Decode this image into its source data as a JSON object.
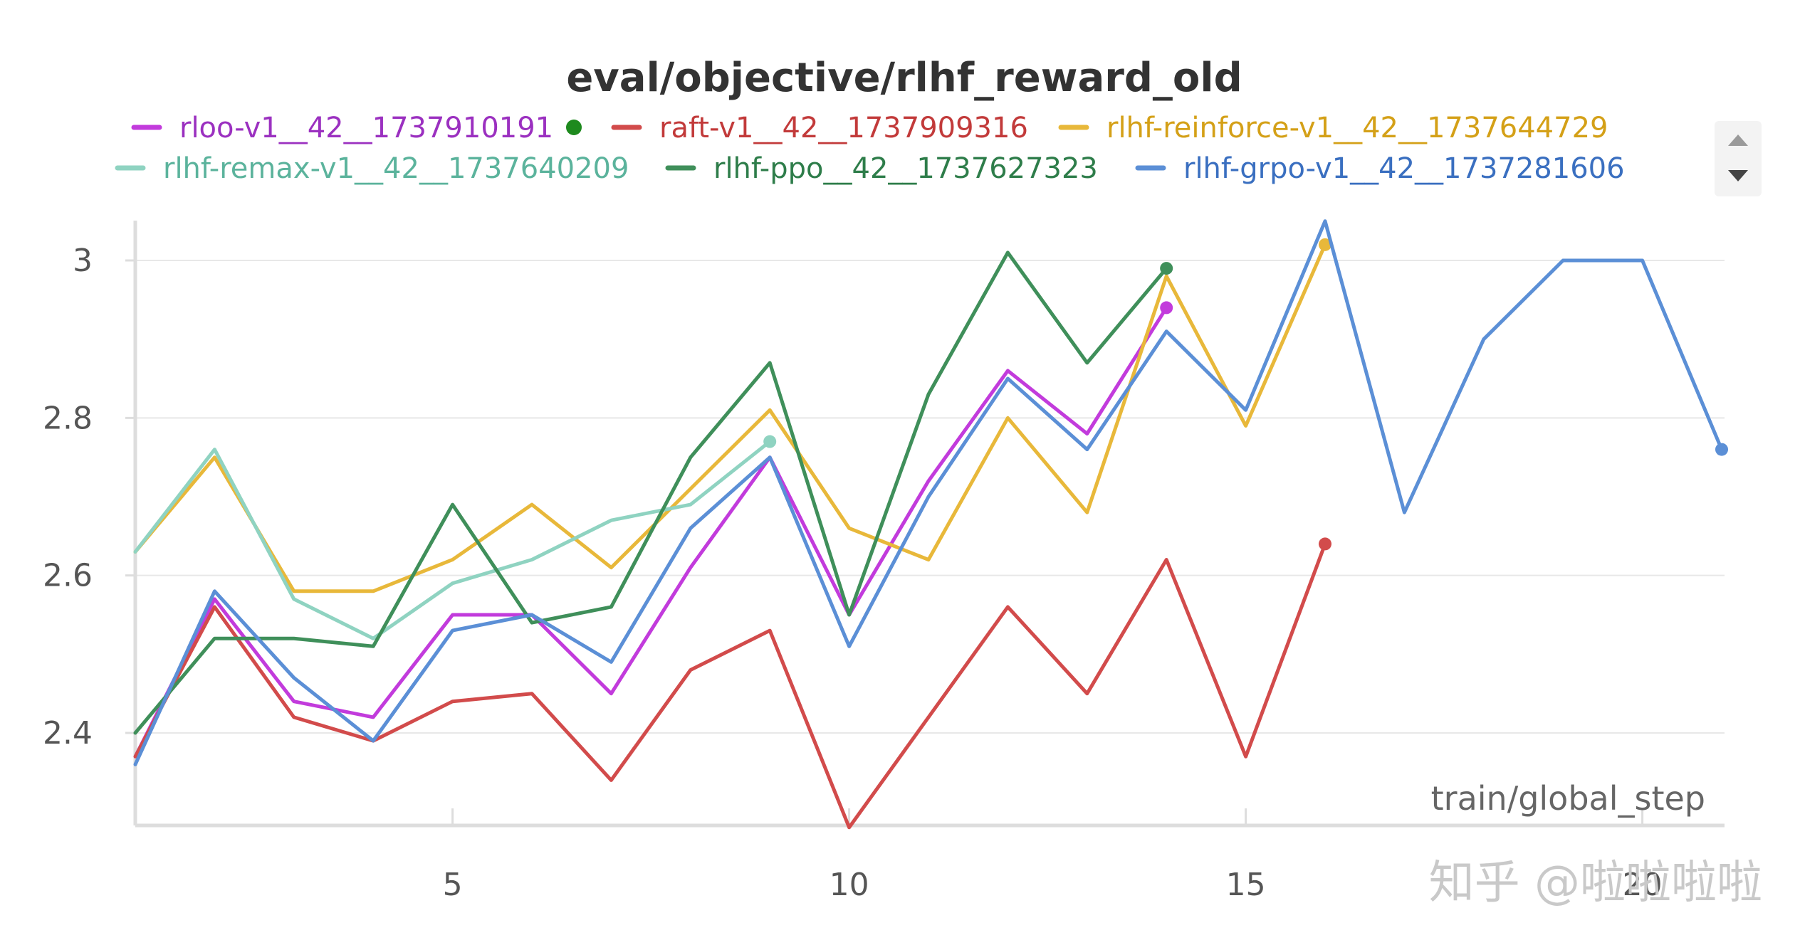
{
  "watermark": "知乎 @啦啦啦啦",
  "legend_scroll": {
    "up_icon": "triangle-up-icon",
    "down_icon": "triangle-down-icon"
  },
  "chart_data": {
    "type": "line",
    "title": "eval/objective/rlhf_reward_old",
    "xlabel": "train/global_step",
    "ylabel": "",
    "xlim": [
      1,
      23
    ],
    "ylim": [
      2.28,
      3.05
    ],
    "xticks": [
      5,
      10,
      15,
      20
    ],
    "yticks": [
      2.4,
      2.6,
      2.8,
      3.0
    ],
    "ytick_labels": [
      "2.4",
      "2.6",
      "2.8",
      "3"
    ],
    "grid": true,
    "legend_position": "top",
    "legend_marker_color": "#1e8a1e",
    "series": [
      {
        "name": "rloo-v1__42__1737910191",
        "color": "#c23bdc",
        "label_color": "#9b30c0",
        "x": [
          1,
          2,
          3,
          4,
          5,
          6,
          7,
          8,
          9,
          10,
          11,
          12,
          13,
          14
        ],
        "y": [
          2.37,
          2.57,
          2.44,
          2.42,
          2.55,
          2.55,
          2.45,
          2.61,
          2.75,
          2.55,
          2.72,
          2.86,
          2.78,
          2.94
        ]
      },
      {
        "name": "raft-v1__42__1737909316",
        "color": "#d24b4b",
        "label_color": "#c23a3a",
        "x": [
          1,
          2,
          3,
          4,
          5,
          6,
          7,
          8,
          9,
          10,
          11,
          12,
          13,
          14,
          15,
          16
        ],
        "y": [
          2.37,
          2.56,
          2.42,
          2.39,
          2.44,
          2.45,
          2.34,
          2.48,
          2.53,
          2.28,
          2.42,
          2.56,
          2.45,
          2.62,
          2.37,
          2.64
        ]
      },
      {
        "name": "rlhf-reinforce-v1__42__1737644729",
        "color": "#e8b83a",
        "label_color": "#d4a017",
        "x": [
          1,
          2,
          3,
          4,
          5,
          6,
          7,
          8,
          9,
          10,
          11,
          12,
          13,
          14,
          15,
          16
        ],
        "y": [
          2.63,
          2.75,
          2.58,
          2.58,
          2.62,
          2.69,
          2.61,
          2.71,
          2.81,
          2.66,
          2.62,
          2.8,
          2.68,
          2.98,
          2.79,
          3.02
        ]
      },
      {
        "name": "rlhf-remax-v1__42__1737640209",
        "color": "#8fd3c1",
        "label_color": "#5bb39c",
        "x": [
          1,
          2,
          3,
          4,
          5,
          6,
          7,
          8,
          9
        ],
        "y": [
          2.63,
          2.76,
          2.57,
          2.52,
          2.59,
          2.62,
          2.67,
          2.69,
          2.77
        ]
      },
      {
        "name": "rlhf-ppo__42__1737627323",
        "color": "#3f8f5a",
        "label_color": "#2e7d4a",
        "x": [
          1,
          2,
          3,
          4,
          5,
          6,
          7,
          8,
          9,
          10,
          11,
          12,
          13,
          14
        ],
        "y": [
          2.4,
          2.52,
          2.52,
          2.51,
          2.69,
          2.54,
          2.56,
          2.75,
          2.87,
          2.55,
          2.83,
          3.01,
          2.87,
          2.99
        ]
      },
      {
        "name": "rlhf-grpo-v1__42__1737281606",
        "color": "#5b8fd6",
        "label_color": "#3a6fc0",
        "x": [
          1,
          2,
          3,
          4,
          5,
          6,
          7,
          8,
          9,
          10,
          11,
          12,
          13,
          14,
          15,
          16,
          17,
          18,
          19,
          20,
          21
        ],
        "y": [
          2.36,
          2.58,
          2.47,
          2.39,
          2.53,
          2.55,
          2.49,
          2.66,
          2.75,
          2.51,
          2.7,
          2.85,
          2.76,
          2.91,
          2.81,
          3.05,
          2.68,
          2.9,
          3.0,
          3.0,
          2.76
        ]
      }
    ]
  }
}
